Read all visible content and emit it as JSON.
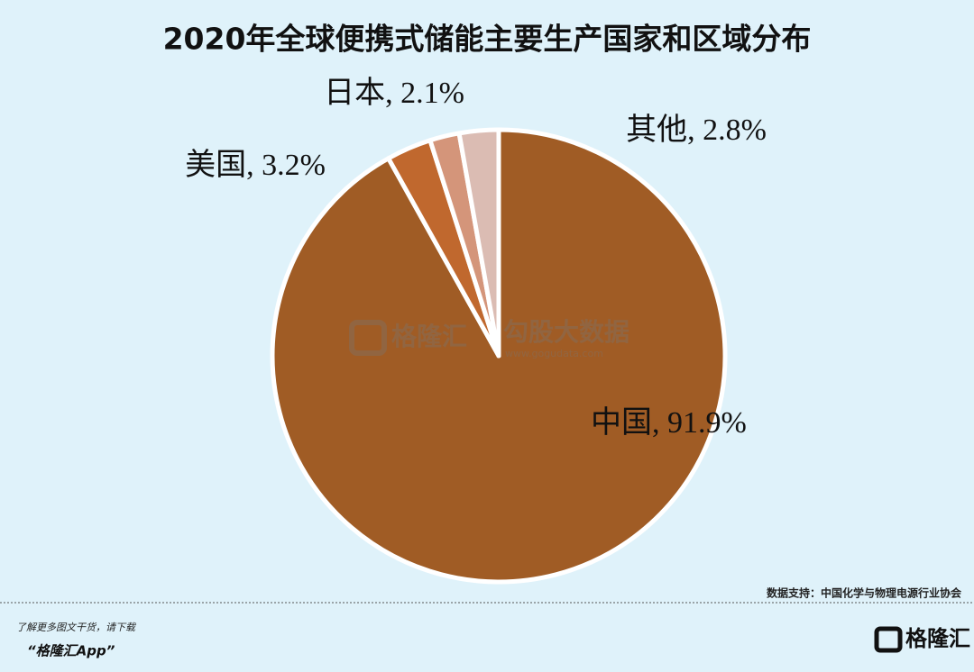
{
  "chart_data": {
    "type": "pie",
    "title": "2020年全球便携式储能主要生产国家和区域分布",
    "labels": [
      "中国, 91.9%",
      "美国, 3.2%",
      "日本, 2.1%",
      "其他, 2.8%"
    ],
    "values": [
      91.9,
      3.2,
      2.1,
      2.8
    ],
    "colors": [
      "#a05c25",
      "#c0682e",
      "#d4957a",
      "#dbbcb3"
    ],
    "source": "数据支持：中国化学与物理电源行业协会"
  },
  "watermark": {
    "brand": "格隆汇",
    "data_brand": "勾股大数据",
    "url": "www.gogudata.com"
  },
  "footer": {
    "prompt": "了解更多图文干货，请下载",
    "app": "“格隆汇App”",
    "logo": "格隆汇"
  }
}
